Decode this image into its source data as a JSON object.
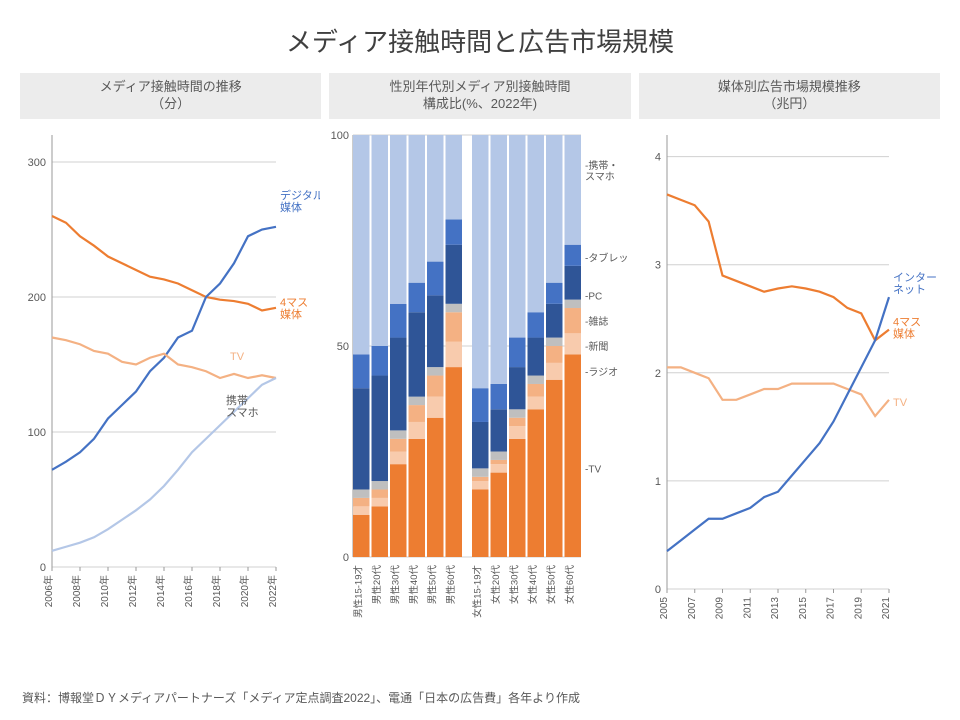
{
  "title": "メディア接触時間と広告市場規模",
  "source": "資料：博報堂ＤＹメディアパートナーズ「メディア定点調査2022」、電通「日本の広告費」各年より作成",
  "colors": {
    "tv": "#f4b183",
    "mass4": "#ed7d31",
    "digital": "#4472c4",
    "mobile": "#b4c7e7",
    "radio": "#f8cbad",
    "news": "#d9b38c",
    "mag": "#bfbfbf",
    "pc": "#2f5597",
    "tablet": "#8faadc",
    "grid": "#d0d0d0",
    "text": "#595959",
    "axis": "#9a9a9a"
  },
  "panel1": {
    "title": "メディア接触時間の推移\n（分）",
    "type": "line",
    "ylim": [
      0,
      320
    ],
    "yticks": [
      0,
      100,
      200,
      300
    ],
    "xticks": [
      "2006年",
      "2008年",
      "2010年",
      "2012年",
      "2014年",
      "2016年",
      "2018年",
      "2020年",
      "2022年"
    ],
    "n": 17,
    "labels": {
      "digital": "デジタル\n媒体",
      "mass4": "4マス\n媒体",
      "tv": "TV",
      "mobile": "携帯\nスマホ"
    },
    "series": {
      "mass4": [
        260,
        255,
        245,
        238,
        230,
        225,
        220,
        215,
        213,
        210,
        205,
        200,
        198,
        197,
        195,
        190,
        192
      ],
      "digital": [
        72,
        78,
        85,
        95,
        110,
        120,
        130,
        145,
        155,
        170,
        175,
        200,
        210,
        225,
        245,
        250,
        252
      ],
      "tv": [
        170,
        168,
        165,
        160,
        158,
        152,
        150,
        155,
        158,
        150,
        148,
        145,
        140,
        143,
        140,
        142,
        140
      ],
      "mobile": [
        12,
        15,
        18,
        22,
        28,
        35,
        42,
        50,
        60,
        72,
        85,
        95,
        105,
        115,
        125,
        135,
        140
      ]
    }
  },
  "panel2": {
    "title": "性別年代別メディア別接触時間\n構成比(%、2022年)",
    "type": "stacked-bar",
    "ylim": [
      0,
      100
    ],
    "yticks": [
      0,
      50,
      100
    ],
    "categories": [
      "男性15-19才",
      "男性20代",
      "男性30代",
      "男性40代",
      "男性50代",
      "男性60代",
      "女性15-19才",
      "女性20代",
      "女性30代",
      "女性40代",
      "女性50代",
      "女性60代"
    ],
    "order": [
      "tv",
      "radio",
      "news",
      "mag",
      "pc",
      "tablet",
      "mobile"
    ],
    "labels": {
      "tv": "TV",
      "radio": "ラジオ",
      "news": "新聞",
      "mag": "雑誌",
      "pc": "PC",
      "tablet": "タブレット",
      "mobile": "携帯・\nスマホ"
    },
    "colors": {
      "tv": "#ed7d31",
      "radio": "#f8cbad",
      "news": "#f4b183",
      "mag": "#bfbfbf",
      "pc": "#2f5597",
      "tablet": "#4472c4",
      "mobile": "#b4c7e7"
    },
    "bars": [
      {
        "tv": 10,
        "radio": 2,
        "news": 2,
        "mag": 2,
        "pc": 24,
        "tablet": 8,
        "mobile": 52
      },
      {
        "tv": 12,
        "radio": 2,
        "news": 2,
        "mag": 2,
        "pc": 25,
        "tablet": 7,
        "mobile": 50
      },
      {
        "tv": 22,
        "radio": 3,
        "news": 3,
        "mag": 2,
        "pc": 22,
        "tablet": 8,
        "mobile": 40
      },
      {
        "tv": 28,
        "radio": 4,
        "news": 4,
        "mag": 2,
        "pc": 20,
        "tablet": 7,
        "mobile": 35
      },
      {
        "tv": 33,
        "radio": 5,
        "news": 5,
        "mag": 2,
        "pc": 17,
        "tablet": 8,
        "mobile": 30
      },
      {
        "tv": 45,
        "radio": 6,
        "news": 7,
        "mag": 2,
        "pc": 14,
        "tablet": 6,
        "mobile": 20
      },
      {
        "tv": 16,
        "radio": 2,
        "news": 1,
        "mag": 2,
        "pc": 11,
        "tablet": 8,
        "mobile": 60
      },
      {
        "tv": 20,
        "radio": 2,
        "news": 1,
        "mag": 2,
        "pc": 10,
        "tablet": 6,
        "mobile": 59
      },
      {
        "tv": 28,
        "radio": 3,
        "news": 2,
        "mag": 2,
        "pc": 10,
        "tablet": 7,
        "mobile": 48
      },
      {
        "tv": 35,
        "radio": 3,
        "news": 3,
        "mag": 2,
        "pc": 9,
        "tablet": 6,
        "mobile": 42
      },
      {
        "tv": 42,
        "radio": 4,
        "news": 4,
        "mag": 2,
        "pc": 8,
        "tablet": 5,
        "mobile": 35
      },
      {
        "tv": 48,
        "radio": 5,
        "news": 6,
        "mag": 2,
        "pc": 8,
        "tablet": 5,
        "mobile": 26
      }
    ]
  },
  "panel3": {
    "title": "媒体別広告市場規模推移\n（兆円）",
    "type": "line",
    "ylim": [
      0,
      4.2
    ],
    "yticks": [
      0,
      1,
      2,
      3,
      4
    ],
    "xticks": [
      "2005",
      "2007",
      "2009",
      "2011",
      "2013",
      "2015",
      "2017",
      "2019",
      "2021"
    ],
    "n": 17,
    "labels": {
      "internet": "インター\nネット",
      "mass4": "4マス\n媒体",
      "tv": "TV"
    },
    "series": {
      "mass4": [
        3.65,
        3.6,
        3.55,
        3.4,
        2.9,
        2.85,
        2.8,
        2.75,
        2.78,
        2.8,
        2.78,
        2.75,
        2.7,
        2.6,
        2.55,
        2.3,
        2.4
      ],
      "tv": [
        2.05,
        2.05,
        2.0,
        1.95,
        1.75,
        1.75,
        1.8,
        1.85,
        1.85,
        1.9,
        1.9,
        1.9,
        1.9,
        1.85,
        1.8,
        1.6,
        1.75
      ],
      "internet": [
        0.35,
        0.45,
        0.55,
        0.65,
        0.65,
        0.7,
        0.75,
        0.85,
        0.9,
        1.05,
        1.2,
        1.35,
        1.55,
        1.8,
        2.05,
        2.3,
        2.7
      ]
    }
  }
}
